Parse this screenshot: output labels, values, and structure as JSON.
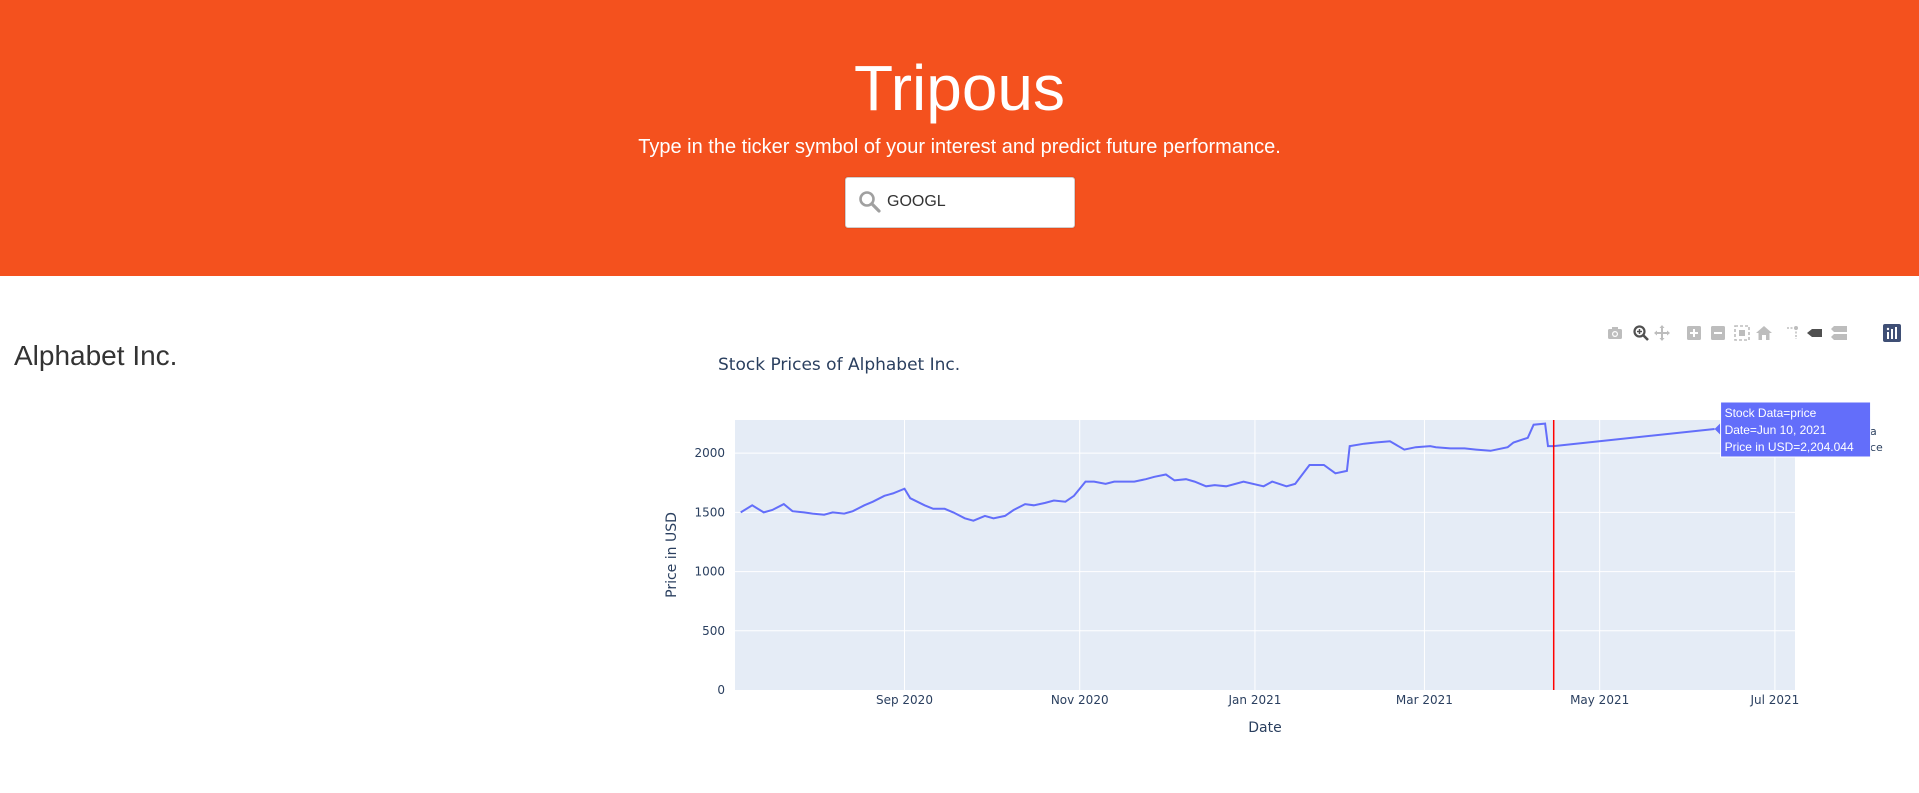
{
  "header": {
    "title": "Tripous",
    "subtitle": "Type in the ticker symbol of your interest and predict future performance.",
    "search_value": "GOOGL",
    "background_color": "#f4511e"
  },
  "company": {
    "name": "Alphabet Inc."
  },
  "modebar": {
    "icons": [
      "camera-icon",
      "zoom-icon",
      "pan-icon",
      "zoom-in-icon",
      "zoom-out-icon",
      "autoscale-icon",
      "home-icon",
      "spike-lines-icon",
      "hover-closest-icon",
      "hover-compare-icon",
      "plotly-logo-icon"
    ]
  },
  "chart_data": {
    "type": "line",
    "title": "Stock Prices of Alphabet Inc.",
    "xlabel": "Date",
    "ylabel": "Price in USD",
    "ylim": [
      0,
      2280
    ],
    "xlim": [
      "2020-07-04",
      "2021-07-08"
    ],
    "x_ticks": [
      "Sep 2020",
      "Nov 2020",
      "Jan 2021",
      "Mar 2021",
      "May 2021",
      "Jul 2021"
    ],
    "y_ticks": [
      0,
      500,
      1000,
      1500,
      2000
    ],
    "grid": true,
    "line_color": "#636efa",
    "plot_bgcolor": "#e5ecf6",
    "vline": {
      "x": "2021-04-15",
      "color": "#ff0000"
    },
    "series": [
      {
        "x": [
          "2020-07-06",
          "2020-07-10",
          "2020-07-14",
          "2020-07-17",
          "2020-07-21",
          "2020-07-24",
          "2020-07-28",
          "2020-07-31",
          "2020-08-04",
          "2020-08-07",
          "2020-08-11",
          "2020-08-14",
          "2020-08-18",
          "2020-08-21",
          "2020-08-25",
          "2020-08-28",
          "2020-09-01",
          "2020-09-03",
          "2020-09-08",
          "2020-09-11",
          "2020-09-15",
          "2020-09-18",
          "2020-09-22",
          "2020-09-25",
          "2020-09-29",
          "2020-10-02",
          "2020-10-06",
          "2020-10-09",
          "2020-10-13",
          "2020-10-16",
          "2020-10-20",
          "2020-10-23",
          "2020-10-27",
          "2020-10-30",
          "2020-11-03",
          "2020-11-06",
          "2020-11-10",
          "2020-11-13",
          "2020-11-17",
          "2020-11-20",
          "2020-11-24",
          "2020-11-27",
          "2020-12-01",
          "2020-12-04",
          "2020-12-08",
          "2020-12-11",
          "2020-12-15",
          "2020-12-18",
          "2020-12-22",
          "2020-12-28",
          "2021-01-04",
          "2021-01-07",
          "2021-01-12",
          "2021-01-15",
          "2021-01-20",
          "2021-01-25",
          "2021-01-29",
          "2021-02-02",
          "2021-02-03",
          "2021-02-08",
          "2021-02-12",
          "2021-02-17",
          "2021-02-22",
          "2021-02-26",
          "2021-03-03",
          "2021-03-05",
          "2021-03-10",
          "2021-03-15",
          "2021-03-19",
          "2021-03-24",
          "2021-03-30",
          "2021-04-01",
          "2021-04-06",
          "2021-04-08",
          "2021-04-12",
          "2021-04-13",
          "2021-04-15",
          "2021-06-10"
        ],
        "y": [
          1500,
          1560,
          1500,
          1520,
          1570,
          1510,
          1500,
          1490,
          1480,
          1500,
          1490,
          1510,
          1560,
          1590,
          1640,
          1660,
          1700,
          1620,
          1560,
          1530,
          1530,
          1500,
          1450,
          1430,
          1470,
          1450,
          1470,
          1520,
          1570,
          1560,
          1580,
          1600,
          1590,
          1640,
          1760,
          1760,
          1740,
          1760,
          1760,
          1760,
          1780,
          1800,
          1820,
          1770,
          1780,
          1760,
          1720,
          1730,
          1720,
          1760,
          1720,
          1760,
          1720,
          1740,
          1900,
          1900,
          1830,
          1850,
          2060,
          2080,
          2090,
          2100,
          2030,
          2050,
          2060,
          2050,
          2040,
          2040,
          2030,
          2020,
          2050,
          2090,
          2130,
          2240,
          2250,
          2060,
          2060,
          2204.044
        ]
      }
    ],
    "tooltip": {
      "line1": "Stock Data=price",
      "line2": "Date=Jun 10, 2021",
      "line3": "Price in USD=2,204.044"
    },
    "legend_partial": [
      "a",
      "ce"
    ]
  }
}
